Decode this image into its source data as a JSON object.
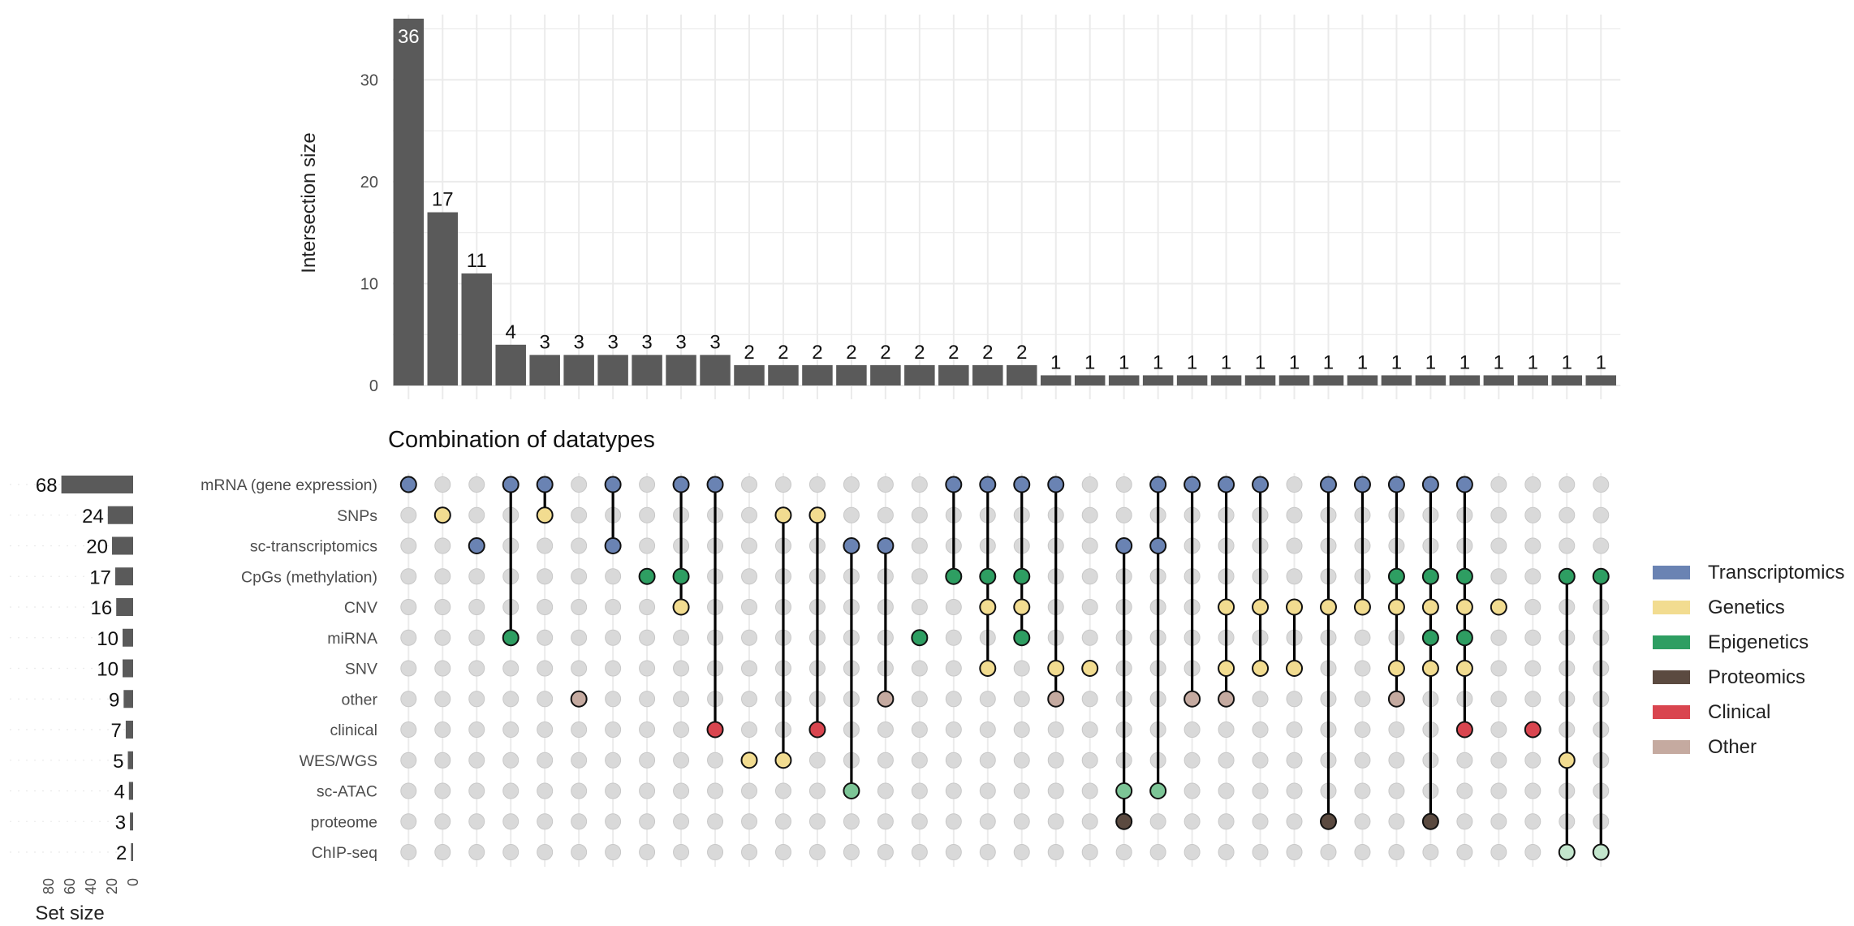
{
  "chart_data": {
    "type": "upset",
    "title": "Combination of datatypes",
    "bar_ylabel": "Intersection size",
    "set_xlabel": "Set size",
    "bar_yticks": [
      0,
      10,
      20,
      30
    ],
    "bar_ylim": [
      0,
      36
    ],
    "set_xticks": [
      80,
      60,
      40,
      20,
      0
    ],
    "set_xlim": [
      0,
      80
    ],
    "sets": [
      {
        "name": "mRNA (gene expression)",
        "size": 68
      },
      {
        "name": "SNPs",
        "size": 24
      },
      {
        "name": "sc-transcriptomics",
        "size": 20
      },
      {
        "name": "CpGs (methylation)",
        "size": 17
      },
      {
        "name": "CNV",
        "size": 16
      },
      {
        "name": "miRNA",
        "size": 10
      },
      {
        "name": "SNV",
        "size": 10
      },
      {
        "name": "other",
        "size": 9
      },
      {
        "name": "clinical",
        "size": 7
      },
      {
        "name": "WES/WGS",
        "size": 5
      },
      {
        "name": "sc-ATAC",
        "size": 4
      },
      {
        "name": "proteome",
        "size": 3
      },
      {
        "name": "ChIP-seq",
        "size": 2
      }
    ],
    "intersections": [
      {
        "size": 36,
        "sets": [
          0
        ]
      },
      {
        "size": 17,
        "sets": [
          1
        ]
      },
      {
        "size": 11,
        "sets": [
          2
        ]
      },
      {
        "size": 4,
        "sets": [
          0,
          5
        ]
      },
      {
        "size": 3,
        "sets": [
          0,
          1
        ]
      },
      {
        "size": 3,
        "sets": [
          7
        ]
      },
      {
        "size": 3,
        "sets": [
          0,
          2
        ]
      },
      {
        "size": 3,
        "sets": [
          3
        ]
      },
      {
        "size": 3,
        "sets": [
          0,
          3,
          4
        ]
      },
      {
        "size": 3,
        "sets": [
          0,
          8
        ]
      },
      {
        "size": 2,
        "sets": [
          9
        ]
      },
      {
        "size": 2,
        "sets": [
          1,
          9
        ]
      },
      {
        "size": 2,
        "sets": [
          1,
          8
        ]
      },
      {
        "size": 2,
        "sets": [
          2,
          10
        ]
      },
      {
        "size": 2,
        "sets": [
          2,
          7
        ]
      },
      {
        "size": 2,
        "sets": [
          5
        ]
      },
      {
        "size": 2,
        "sets": [
          0,
          3
        ]
      },
      {
        "size": 2,
        "sets": [
          0,
          3,
          4,
          6
        ]
      },
      {
        "size": 2,
        "sets": [
          0,
          3,
          4,
          5
        ]
      },
      {
        "size": 1,
        "sets": [
          0,
          6,
          7
        ]
      },
      {
        "size": 1,
        "sets": [
          6
        ]
      },
      {
        "size": 1,
        "sets": [
          2,
          10,
          11
        ]
      },
      {
        "size": 1,
        "sets": [
          0,
          2,
          10
        ]
      },
      {
        "size": 1,
        "sets": [
          0,
          7
        ]
      },
      {
        "size": 1,
        "sets": [
          0,
          4,
          6,
          7
        ]
      },
      {
        "size": 1,
        "sets": [
          0,
          4,
          6
        ]
      },
      {
        "size": 1,
        "sets": [
          4,
          6
        ]
      },
      {
        "size": 1,
        "sets": [
          0,
          4,
          11
        ]
      },
      {
        "size": 1,
        "sets": [
          0,
          4
        ]
      },
      {
        "size": 1,
        "sets": [
          0,
          3,
          4,
          6,
          7
        ]
      },
      {
        "size": 1,
        "sets": [
          0,
          3,
          4,
          5,
          6,
          11
        ]
      },
      {
        "size": 1,
        "sets": [
          0,
          3,
          4,
          5,
          6,
          8
        ]
      },
      {
        "size": 1,
        "sets": [
          4
        ]
      },
      {
        "size": 1,
        "sets": [
          8
        ]
      },
      {
        "size": 1,
        "sets": [
          3,
          9,
          12
        ]
      },
      {
        "size": 1,
        "sets": [
          3,
          12
        ]
      }
    ],
    "categories": [
      {
        "name": "Transcriptomics",
        "color": "#6a83b3"
      },
      {
        "name": "Genetics",
        "color": "#f2dc90"
      },
      {
        "name": "Epigenetics",
        "color": "#2e9e62"
      },
      {
        "name": "Proteomics",
        "color": "#5b4a40"
      },
      {
        "name": "Clinical",
        "color": "#d9454f"
      },
      {
        "name": "Other",
        "color": "#c5aaa0"
      }
    ],
    "point_colors": {
      "0": "#6a83b3",
      "1": "#f2dc90",
      "2": "#6a83b3",
      "3": "#2e9e62",
      "4": "#f2dc90",
      "5": "#2e9e62",
      "6": "#f2dc90",
      "7": "#c5aaa0",
      "8": "#d9454f",
      "9": "#f2dc90",
      "10": "#7cc596",
      "11": "#5b4a40",
      "12": "#c3e6cd"
    },
    "bar_color": "#5a5a5a",
    "empty_dot_color": "#d9d9d9",
    "grid": true,
    "legend_position": "right"
  }
}
